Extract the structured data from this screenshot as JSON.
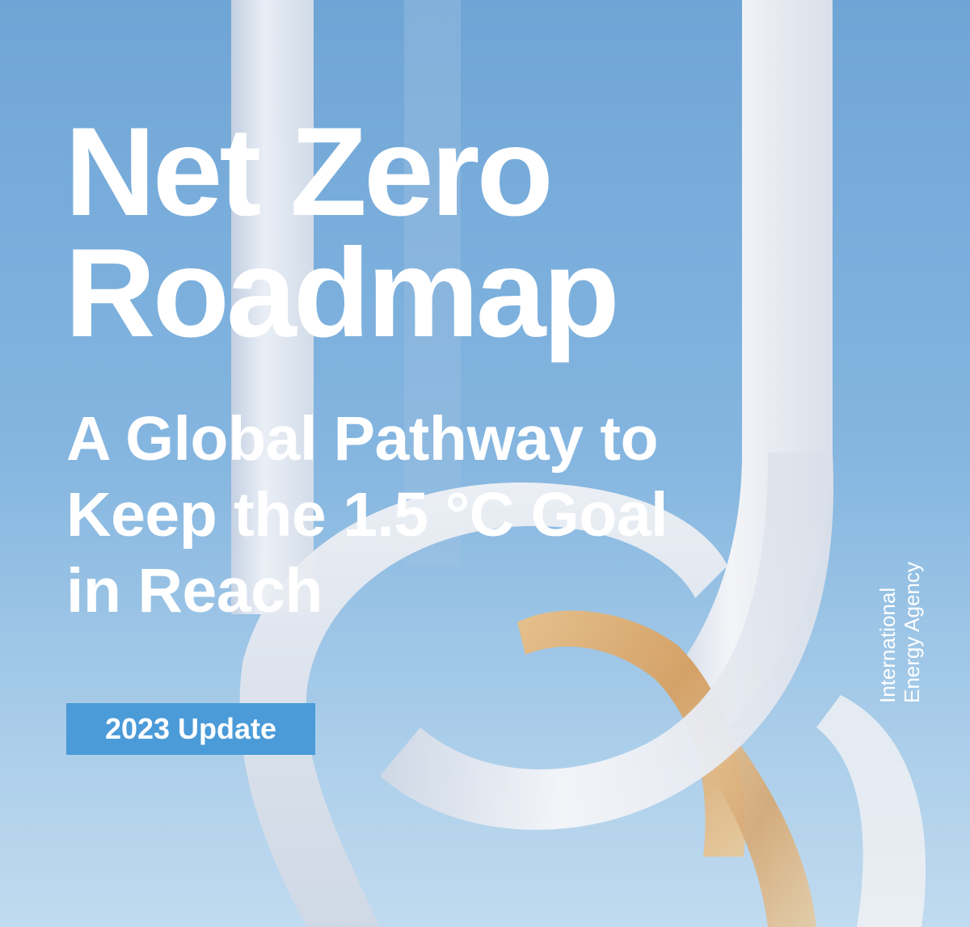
{
  "cover": {
    "title_lines": [
      "Net Zero",
      "Roadmap"
    ],
    "subtitle_lines": [
      "A Global Pathway to",
      "Keep the 1.5 °C Goal",
      "in Reach"
    ],
    "edition_badge": "2023 Update",
    "publisher_lines": [
      "International",
      "Energy Agency"
    ]
  },
  "colors": {
    "sky": "#7aafdc",
    "badge": "#4a9bd8",
    "text": "#ffffff",
    "sculpture_silver": "#e6e8ee",
    "sculpture_gold": "#d6a66a"
  }
}
